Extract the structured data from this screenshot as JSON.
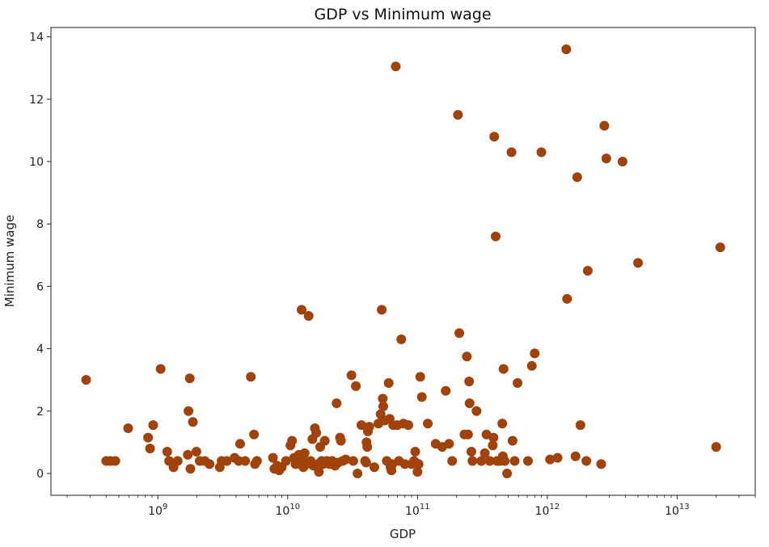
{
  "chart_data": {
    "type": "scatter",
    "title": "GDP vs Minimum wage",
    "xlabel": "GDP",
    "ylabel": "Minimum wage",
    "x_scale": "log",
    "xlim": [
      150000000,
      40000000000000
    ],
    "ylim": [
      -0.7,
      14.3
    ],
    "x_ticks": [
      {
        "value": 1000000000,
        "base": "10",
        "exp": "9"
      },
      {
        "value": 10000000000,
        "base": "10",
        "exp": "10"
      },
      {
        "value": 100000000000,
        "base": "10",
        "exp": "11"
      },
      {
        "value": 1000000000000,
        "base": "10",
        "exp": "12"
      },
      {
        "value": 10000000000000,
        "base": "10",
        "exp": "13"
      }
    ],
    "y_ticks": [
      0,
      2,
      4,
      6,
      8,
      10,
      12,
      14
    ],
    "grid": false,
    "legend": "none",
    "marker_color": "#a0420a",
    "points": [
      [
        280000000.0,
        3.0
      ],
      [
        400000000.0,
        0.4
      ],
      [
        430000000.0,
        0.4
      ],
      [
        470000000.0,
        0.4
      ],
      [
        590000000.0,
        1.45
      ],
      [
        840000000.0,
        1.15
      ],
      [
        870000000.0,
        0.8
      ],
      [
        920000000.0,
        1.55
      ],
      [
        1050000000.0,
        3.35
      ],
      [
        1180000000.0,
        0.7
      ],
      [
        1220000000.0,
        0.4
      ],
      [
        1320000000.0,
        0.2
      ],
      [
        1420000000.0,
        0.4
      ],
      [
        1700000000.0,
        0.6
      ],
      [
        1720000000.0,
        2.0
      ],
      [
        1760000000.0,
        3.05
      ],
      [
        1780000000.0,
        0.15
      ],
      [
        1860000000.0,
        1.65
      ],
      [
        1980000000.0,
        0.7
      ],
      [
        2100000000.0,
        0.4
      ],
      [
        2300000000.0,
        0.4
      ],
      [
        2500000000.0,
        0.3
      ],
      [
        3000000000.0,
        0.2
      ],
      [
        3100000000.0,
        0.4
      ],
      [
        3400000000.0,
        0.4
      ],
      [
        3900000000.0,
        0.5
      ],
      [
        4200000000.0,
        0.4
      ],
      [
        4300000000.0,
        0.95
      ],
      [
        4700000000.0,
        0.4
      ],
      [
        5200000000.0,
        3.1
      ],
      [
        5500000000.0,
        1.25
      ],
      [
        5600000000.0,
        0.3
      ],
      [
        5800000000.0,
        0.4
      ],
      [
        7700000000.0,
        0.5
      ],
      [
        7900000000.0,
        0.15
      ],
      [
        8300000000.0,
        0.25
      ],
      [
        8600000000.0,
        0.1
      ],
      [
        9000000000.0,
        0.2
      ],
      [
        9700000000.0,
        0.4
      ],
      [
        10500000000.0,
        0.9
      ],
      [
        10800000000.0,
        1.05
      ],
      [
        11200000000.0,
        0.5
      ],
      [
        11500000000.0,
        0.3
      ],
      [
        12000000000.0,
        0.35
      ],
      [
        12200000000.0,
        0.6
      ],
      [
        12600000000.0,
        0.3
      ],
      [
        12800000000.0,
        5.25
      ],
      [
        13000000000.0,
        0.5
      ],
      [
        13200000000.0,
        0.2
      ],
      [
        13500000000.0,
        0.65
      ],
      [
        14000000000.0,
        0.3
      ],
      [
        14500000000.0,
        5.05
      ],
      [
        15000000000.0,
        0.4
      ],
      [
        15500000000.0,
        1.1
      ],
      [
        15800000000.0,
        0.25
      ],
      [
        16200000000.0,
        1.45
      ],
      [
        16600000000.0,
        1.3
      ],
      [
        17000000000.0,
        0.3
      ],
      [
        17400000000.0,
        0.05
      ],
      [
        17800000000.0,
        0.85
      ],
      [
        18300000000.0,
        0.4
      ],
      [
        18700000000.0,
        0.3
      ],
      [
        19300000000.0,
        1.05
      ],
      [
        20000000000.0,
        0.4
      ],
      [
        21000000000.0,
        0.3
      ],
      [
        22000000000.0,
        0.4
      ],
      [
        23200000000.0,
        0.25
      ],
      [
        23800000000.0,
        2.25
      ],
      [
        24500000000.0,
        0.35
      ],
      [
        25300000000.0,
        1.15
      ],
      [
        25700000000.0,
        1.05
      ],
      [
        26500000000.0,
        0.4
      ],
      [
        28000000000.0,
        0.45
      ],
      [
        31000000000.0,
        3.15
      ],
      [
        32000000000.0,
        0.4
      ],
      [
        33500000000.0,
        2.8
      ],
      [
        34500000000.0,
        0.0
      ],
      [
        37000000000.0,
        1.55
      ],
      [
        39500000000.0,
        0.4
      ],
      [
        40200000000.0,
        0.35
      ],
      [
        40500000000.0,
        1.0
      ],
      [
        41000000000.0,
        0.85
      ],
      [
        41500000000.0,
        1.35
      ],
      [
        42500000000.0,
        1.5
      ],
      [
        46500000000.0,
        0.2
      ],
      [
        50000000000.0,
        1.6
      ],
      [
        52000000000.0,
        1.9
      ],
      [
        53000000000.0,
        5.25
      ],
      [
        54000000000.0,
        2.4
      ],
      [
        54500000000.0,
        2.15
      ],
      [
        56000000000.0,
        1.7
      ],
      [
        58000000000.0,
        0.4
      ],
      [
        60000000000.0,
        2.9
      ],
      [
        61000000000.0,
        1.75
      ],
      [
        62000000000.0,
        0.2
      ],
      [
        63000000000.0,
        0.1
      ],
      [
        64000000000.0,
        0.3
      ],
      [
        65000000000.0,
        1.55
      ],
      [
        68000000000.0,
        13.05
      ],
      [
        70000000000.0,
        1.55
      ],
      [
        72000000000.0,
        0.4
      ],
      [
        75000000000.0,
        4.3
      ],
      [
        78000000000.0,
        1.6
      ],
      [
        80000000000.0,
        0.3
      ],
      [
        85000000000.0,
        1.55
      ],
      [
        90000000000.0,
        0.3
      ],
      [
        94000000000.0,
        0.4
      ],
      [
        96000000000.0,
        0.7
      ],
      [
        100000000000.0,
        0.05
      ],
      [
        102000000000.0,
        0.3
      ],
      [
        105000000000.0,
        3.1
      ],
      [
        108000000000.0,
        2.45
      ],
      [
        120000000000.0,
        1.6
      ],
      [
        138000000000.0,
        0.95
      ],
      [
        155000000000.0,
        0.85
      ],
      [
        165000000000.0,
        2.65
      ],
      [
        175000000000.0,
        0.95
      ],
      [
        185000000000.0,
        0.4
      ],
      [
        205000000000.0,
        11.5
      ],
      [
        210000000000.0,
        4.5
      ],
      [
        230000000000.0,
        1.25
      ],
      [
        240000000000.0,
        3.75
      ],
      [
        245000000000.0,
        1.25
      ],
      [
        250000000000.0,
        2.95
      ],
      [
        252000000000.0,
        2.25
      ],
      [
        260000000000.0,
        0.7
      ],
      [
        265000000000.0,
        0.4
      ],
      [
        285000000000.0,
        2.0
      ],
      [
        310000000000.0,
        0.4
      ],
      [
        330000000000.0,
        0.65
      ],
      [
        340000000000.0,
        1.25
      ],
      [
        360000000000.0,
        0.4
      ],
      [
        380000000000.0,
        0.9
      ],
      [
        385000000000.0,
        1.15
      ],
      [
        390000000000.0,
        10.8
      ],
      [
        400000000000.0,
        7.6
      ],
      [
        410000000000.0,
        0.4
      ],
      [
        430000000000.0,
        0.4
      ],
      [
        450000000000.0,
        1.6
      ],
      [
        455000000000.0,
        0.55
      ],
      [
        460000000000.0,
        3.35
      ],
      [
        470000000000.0,
        0.4
      ],
      [
        490000000000.0,
        0.0
      ],
      [
        530000000000.0,
        10.3
      ],
      [
        540000000000.0,
        1.05
      ],
      [
        560000000000.0,
        0.4
      ],
      [
        590000000000.0,
        2.9
      ],
      [
        710000000000.0,
        0.4
      ],
      [
        760000000000.0,
        3.45
      ],
      [
        800000000000.0,
        3.85
      ],
      [
        900000000000.0,
        10.3
      ],
      [
        1050000000000.0,
        0.45
      ],
      [
        1200000000000.0,
        0.5
      ],
      [
        1400000000000.0,
        13.6
      ],
      [
        1420000000000.0,
        5.6
      ],
      [
        1650000000000.0,
        0.55
      ],
      [
        1700000000000.0,
        9.5
      ],
      [
        1800000000000.0,
        1.55
      ],
      [
        2000000000000.0,
        0.4
      ],
      [
        2050000000000.0,
        6.5
      ],
      [
        2600000000000.0,
        0.3
      ],
      [
        2750000000000.0,
        11.15
      ],
      [
        2850000000000.0,
        10.1
      ],
      [
        3800000000000.0,
        10.0
      ],
      [
        5000000000000.0,
        6.75
      ],
      [
        20000000000000.0,
        0.85
      ],
      [
        21500000000000.0,
        7.25
      ]
    ]
  }
}
